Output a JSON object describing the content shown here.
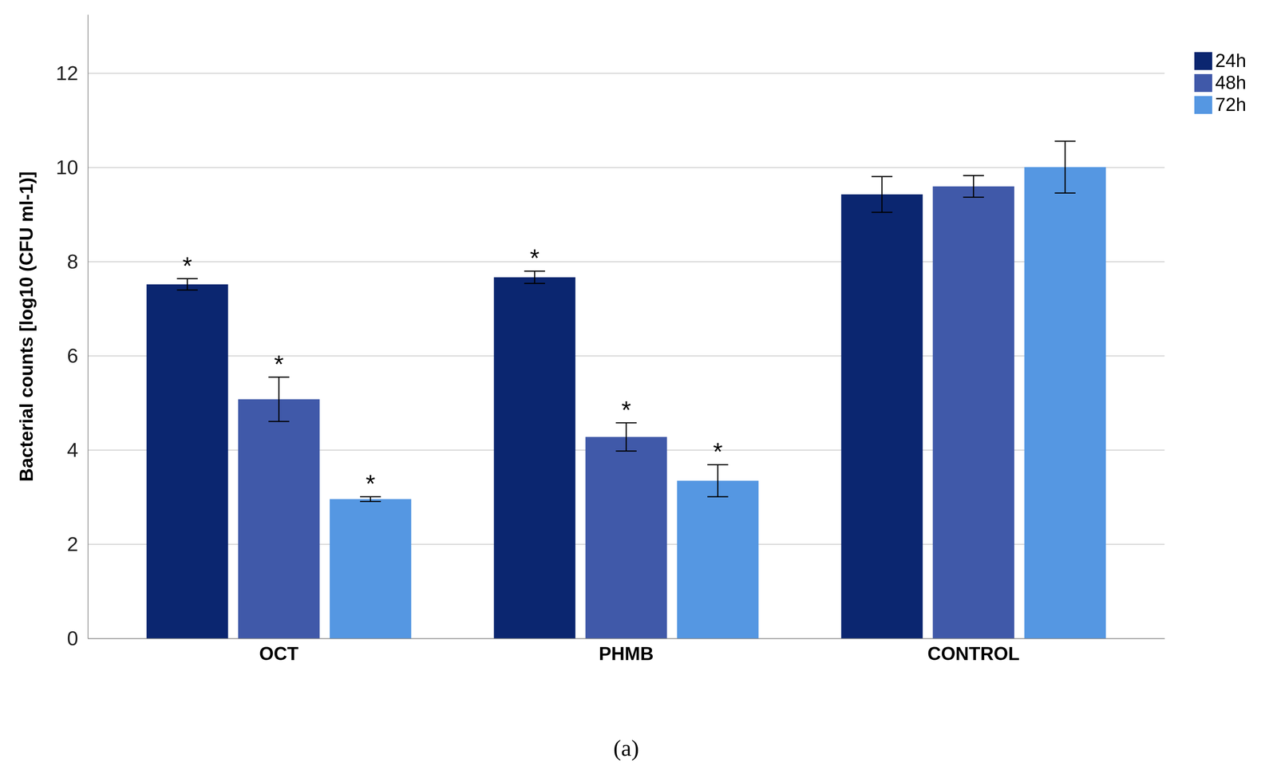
{
  "chart_data": {
    "type": "bar",
    "y_label": "Bacterial counts [log10 (CFU ml-1)]",
    "caption": "(a)",
    "categories": [
      "OCT",
      "PHMB",
      "CONTROL"
    ],
    "series": [
      {
        "name": "24h",
        "color": "#0b2670",
        "values": [
          7.52,
          7.67,
          9.43
        ],
        "errors": [
          0.12,
          0.13,
          0.38
        ],
        "significance": [
          "*",
          "*",
          null
        ]
      },
      {
        "name": "48h",
        "color": "#4059a9",
        "values": [
          5.08,
          4.28,
          9.6
        ],
        "errors": [
          0.47,
          0.3,
          0.23
        ],
        "significance": [
          "*",
          "*",
          null
        ]
      },
      {
        "name": "72h",
        "color": "#5597e2",
        "values": [
          2.96,
          3.35,
          10.01
        ],
        "errors": [
          0.05,
          0.34,
          0.55
        ],
        "significance": [
          "*",
          "*",
          null
        ]
      }
    ],
    "ylim": [
      0,
      13.25
    ],
    "yticks": [
      0,
      2,
      4,
      6,
      8,
      10,
      12
    ],
    "grid": true,
    "legend": "right"
  }
}
